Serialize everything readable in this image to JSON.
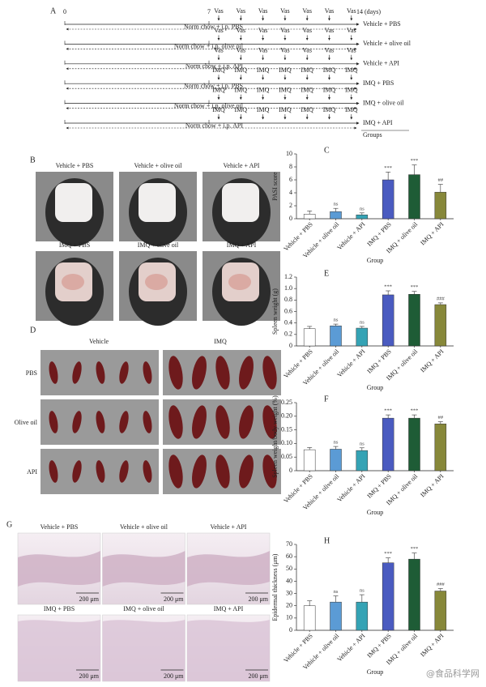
{
  "figure": {
    "panel_a": {
      "label": "A",
      "days": [
        "0",
        "7",
        "14 (days)"
      ],
      "rows": [
        {
          "markers": [
            "Vas",
            "Vas",
            "Vas",
            "Vas",
            "Vas",
            "Vas",
            "Vas"
          ],
          "treatment": "Norm chow + i.p. PBS",
          "group": "Vehicle + PBS"
        },
        {
          "markers": [
            "Vas",
            "Vas",
            "Vas",
            "Vas",
            "Vas",
            "Vas",
            "Vas"
          ],
          "treatment": "Norm chow + i.p. olive oil",
          "group": "Vehicle + olive oil"
        },
        {
          "markers": [
            "Vas",
            "Vas",
            "Vas",
            "Vas",
            "Vas",
            "Vas",
            "Vas"
          ],
          "treatment": "Norm chow + i.p. API",
          "group": "Vehicle + API"
        },
        {
          "markers": [
            "IMQ",
            "IMQ",
            "IMQ",
            "IMQ",
            "IMQ",
            "IMQ",
            "IMQ"
          ],
          "treatment": "Norm chow + i.p. PBS",
          "group": "IMQ + PBS"
        },
        {
          "markers": [
            "IMQ",
            "IMQ",
            "IMQ",
            "IMQ",
            "IMQ",
            "IMQ",
            "IMQ"
          ],
          "treatment": "Norm chow + i.p. olive oil",
          "group": "IMQ + olive oil"
        },
        {
          "markers": [
            "IMQ",
            "IMQ",
            "IMQ",
            "IMQ",
            "IMQ",
            "IMQ",
            "IMQ"
          ],
          "treatment": "Norm chow + i.p. API",
          "group": "IMQ + API"
        }
      ],
      "footer": "Groups"
    },
    "panel_b": {
      "label": "B",
      "photos": [
        "Vehicle + PBS",
        "Vehicle + olive oil",
        "Vehicle + API",
        "IMQ + PBS",
        "IMQ + olive oil",
        "IMQ + API"
      ]
    },
    "panel_d": {
      "label": "D",
      "columns": [
        "Vehicle",
        "IMQ"
      ],
      "rows": [
        "PBS",
        "Olive oil",
        "API"
      ]
    },
    "panel_g": {
      "label": "G",
      "photos": [
        "Vehicle + PBS",
        "Vehicle + olive oil",
        "Vehicle + API",
        "IMQ + PBS",
        "IMQ + olive oil",
        "IMQ + API"
      ],
      "scale_bar": "200 μm"
    },
    "watermark": "@食品科学网"
  },
  "chart_data": [
    {
      "type": "bar",
      "panel": "C",
      "y_label": "PASI score",
      "x_label": "Group",
      "categories": [
        "Vehicle + PBS",
        "Vehicle + olive oil",
        "Vehicle + API",
        "IMQ + PBS",
        "IMQ + olive oil",
        "IMQ + API"
      ],
      "values": [
        0.7,
        1.1,
        0.6,
        6.0,
        6.8,
        4.1
      ],
      "errors": [
        0.5,
        0.5,
        0.3,
        1.2,
        1.5,
        1.2
      ],
      "annotations": [
        null,
        "ns",
        "ns",
        "***",
        "***",
        "##"
      ],
      "colors": [
        "#ffffff",
        "#5b9bd5",
        "#35a3b5",
        "#4a5bc0",
        "#1e5c36",
        "#87883a"
      ],
      "ylim": [
        0,
        10
      ],
      "yticks": [
        0,
        2,
        4,
        6,
        8,
        10
      ]
    },
    {
      "type": "bar",
      "panel": "E",
      "y_label": "Spleen weight (g)",
      "x_label": "Group",
      "categories": [
        "Vehicle + PBS",
        "Vehicle + olive oil",
        "Vehicle + API",
        "IMQ + PBS",
        "IMQ + olive oil",
        "IMQ + API"
      ],
      "values": [
        0.3,
        0.35,
        0.31,
        0.89,
        0.9,
        0.72
      ],
      "errors": [
        0.04,
        0.03,
        0.03,
        0.07,
        0.05,
        0.03
      ],
      "annotations": [
        null,
        "ns",
        "ns",
        "***",
        "***",
        "###"
      ],
      "colors": [
        "#ffffff",
        "#5b9bd5",
        "#35a3b5",
        "#4a5bc0",
        "#1e5c36",
        "#87883a"
      ],
      "ylim": [
        0,
        1.2
      ],
      "yticks": [
        0,
        0.2,
        0.4,
        0.6,
        0.8,
        {
          "value": 1,
          "label": "1.0"
        },
        1.2
      ]
    },
    {
      "type": "bar",
      "panel": "F",
      "y_label": "Spleen weight/body weight (%)",
      "x_label": "Group",
      "categories": [
        "Vehicle + PBS",
        "Vehicle + olive oil",
        "Vehicle + API",
        "IMQ + PBS",
        "IMQ + olive oil",
        "IMQ + API"
      ],
      "values": [
        0.077,
        0.079,
        0.074,
        0.193,
        0.193,
        0.172
      ],
      "errors": [
        0.008,
        0.01,
        0.01,
        0.012,
        0.012,
        0.008
      ],
      "annotations": [
        null,
        "ns",
        "ns",
        "***",
        "***",
        "##"
      ],
      "colors": [
        "#ffffff",
        "#5b9bd5",
        "#35a3b5",
        "#4a5bc0",
        "#1e5c36",
        "#87883a"
      ],
      "ylim": [
        0,
        0.25
      ],
      "yticks": [
        0,
        0.05,
        {
          "value": 0.1,
          "label": "0.10"
        },
        0.15,
        {
          "value": 0.2,
          "label": "0.20"
        },
        0.25
      ]
    },
    {
      "type": "bar",
      "panel": "H",
      "y_label": "Epidermal thickness (μm)",
      "x_label": "Group",
      "categories": [
        "Vehicle + PBS",
        "Vehicle + olive oil",
        "Vehicle + API",
        "IMQ + PBS",
        "IMQ + olive oil",
        "IMQ + API"
      ],
      "values": [
        20,
        23,
        23,
        55,
        58,
        32
      ],
      "errors": [
        4,
        5,
        6,
        4,
        5,
        2
      ],
      "annotations": [
        null,
        "ns",
        "ns",
        "***",
        "***",
        "###"
      ],
      "colors": [
        "#ffffff",
        "#5b9bd5",
        "#35a3b5",
        "#4a5bc0",
        "#1e5c36",
        "#87883a"
      ],
      "ylim": [
        0,
        70
      ],
      "yticks": [
        0,
        10,
        20,
        30,
        40,
        50,
        60,
        70
      ]
    }
  ]
}
